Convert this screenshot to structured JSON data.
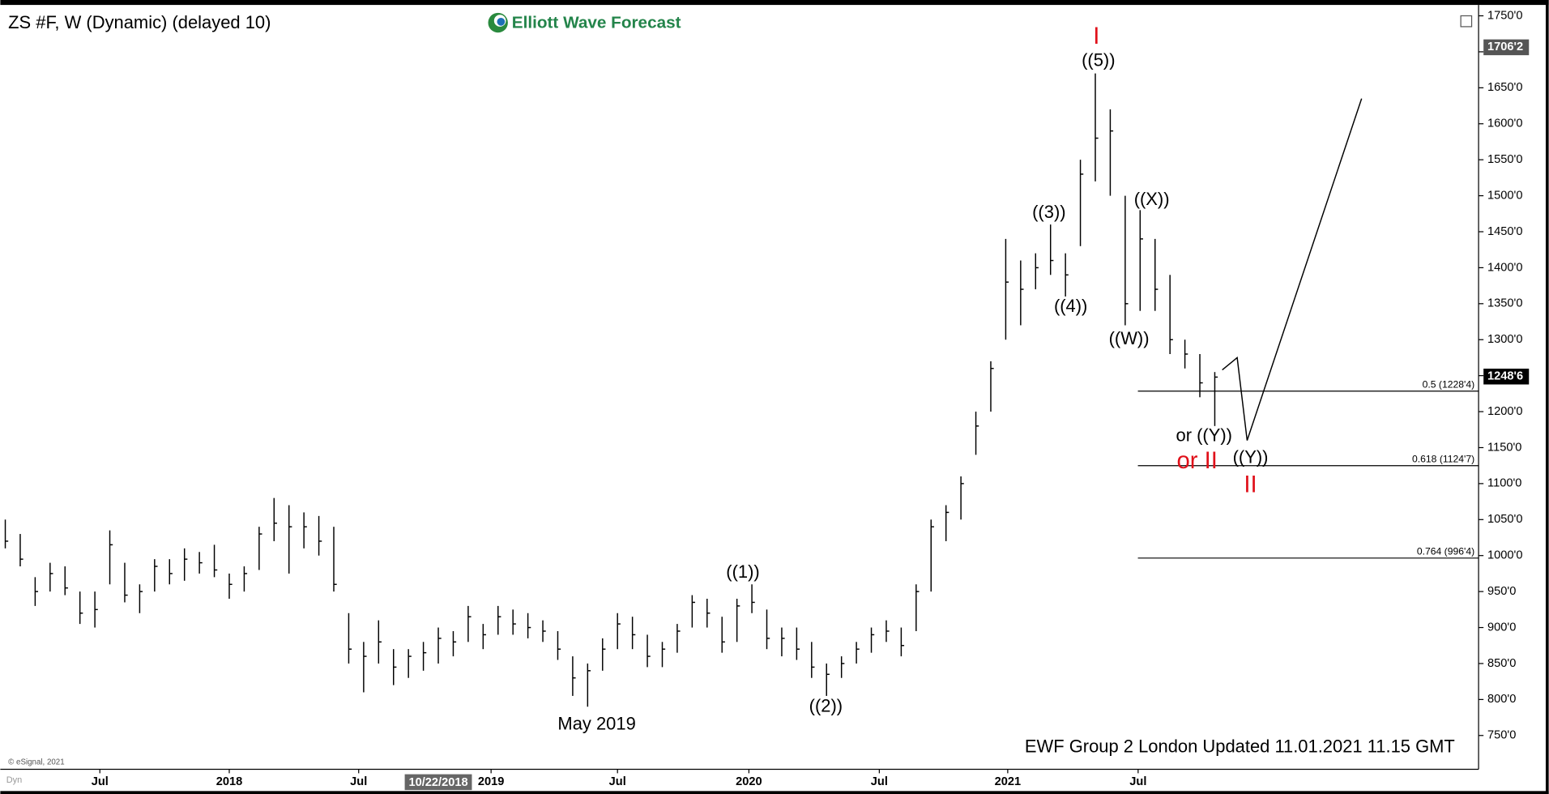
{
  "chart_data": {
    "type": "ohlc",
    "title": "ZS #F, W (Dynamic) (delayed 10)",
    "logo": "Elliott Wave Forecast",
    "footer": "EWF Group 2 London Updated 11.01.2021 11.15 GMT",
    "source": "© eSignal, 2021",
    "corner": "Dyn",
    "color": "#000000",
    "x": [
      1,
      4,
      7,
      10,
      13,
      16,
      19,
      22,
      25,
      28,
      31,
      34,
      37,
      40,
      43,
      46,
      49,
      52,
      55,
      58,
      61,
      64,
      67,
      70,
      73,
      76,
      79,
      82,
      85,
      88,
      91,
      94,
      97,
      100,
      103,
      106,
      109,
      112,
      115,
      118,
      121,
      124,
      127,
      130,
      133,
      136,
      139,
      142,
      145,
      148,
      151,
      154,
      157,
      160,
      163,
      166,
      169,
      172,
      175,
      178,
      181,
      184,
      187,
      190,
      193,
      196,
      199,
      202,
      205,
      208,
      211,
      214,
      217,
      220,
      223,
      226,
      229,
      232,
      235,
      238,
      241,
      244
    ],
    "high": [
      1050,
      1030,
      970,
      990,
      985,
      950,
      950,
      1035,
      990,
      960,
      995,
      995,
      1010,
      1005,
      1015,
      975,
      985,
      1040,
      1080,
      1070,
      1060,
      1055,
      1040,
      920,
      880,
      910,
      870,
      870,
      880,
      900,
      895,
      930,
      905,
      930,
      925,
      920,
      910,
      895,
      860,
      850,
      885,
      920,
      915,
      890,
      880,
      905,
      945,
      940,
      915,
      940,
      960,
      925,
      900,
      900,
      880,
      850,
      860,
      880,
      900,
      910,
      900,
      960,
      1050,
      1070,
      1110,
      1200,
      1270,
      1440,
      1410,
      1420,
      1460,
      1420,
      1550,
      1670,
      1620,
      1500,
      1480,
      1440,
      1390,
      1300,
      1280,
      1255
    ],
    "low": [
      1010,
      985,
      930,
      950,
      945,
      905,
      900,
      960,
      935,
      920,
      950,
      960,
      965,
      975,
      970,
      940,
      950,
      980,
      1020,
      975,
      1010,
      1000,
      950,
      850,
      810,
      850,
      820,
      830,
      840,
      850,
      860,
      880,
      870,
      890,
      890,
      885,
      880,
      855,
      805,
      790,
      840,
      870,
      870,
      845,
      845,
      865,
      900,
      900,
      865,
      880,
      920,
      870,
      860,
      855,
      830,
      805,
      830,
      850,
      865,
      880,
      860,
      895,
      950,
      1020,
      1050,
      1140,
      1200,
      1300,
      1320,
      1370,
      1390,
      1360,
      1430,
      1520,
      1500,
      1320,
      1340,
      1340,
      1280,
      1260,
      1220,
      1180
    ],
    "close": [
      1020,
      995,
      950,
      975,
      955,
      920,
      925,
      1015,
      945,
      950,
      985,
      975,
      995,
      990,
      980,
      960,
      975,
      1030,
      1045,
      1040,
      1040,
      1020,
      960,
      870,
      860,
      880,
      845,
      860,
      865,
      885,
      880,
      915,
      890,
      915,
      905,
      900,
      895,
      870,
      830,
      840,
      870,
      905,
      890,
      860,
      870,
      895,
      935,
      920,
      880,
      930,
      935,
      885,
      885,
      870,
      845,
      835,
      850,
      870,
      890,
      895,
      875,
      950,
      1040,
      1060,
      1100,
      1180,
      1260,
      1380,
      1370,
      1400,
      1410,
      1390,
      1530,
      1580,
      1590,
      1350,
      1440,
      1370,
      1300,
      1280,
      1240,
      1248
    ],
    "xlim": [
      0,
      297
    ],
    "ylim": [
      703,
      1761
    ],
    "xticks": [
      {
        "value": 20,
        "label": "Jul"
      },
      {
        "value": 46,
        "label": "2018"
      },
      {
        "value": 72,
        "label": "Jul"
      },
      {
        "value": 98.6,
        "label": "2019"
      },
      {
        "value": 124,
        "label": "Jul"
      },
      {
        "value": 150.4,
        "label": "2020"
      },
      {
        "value": 176.6,
        "label": "Jul"
      },
      {
        "value": 202.4,
        "label": "2021"
      },
      {
        "value": 228.6,
        "label": "Jul"
      }
    ],
    "crosshair": {
      "value": 88,
      "label": "10/22/2018"
    },
    "yticks": [
      {
        "value": 750,
        "label": "750'0"
      },
      {
        "value": 800,
        "label": "800'0"
      },
      {
        "value": 850,
        "label": "850'0"
      },
      {
        "value": 900,
        "label": "900'0"
      },
      {
        "value": 950,
        "label": "950'0"
      },
      {
        "value": 1000,
        "label": "1000'0"
      },
      {
        "value": 1050,
        "label": "1050'0"
      },
      {
        "value": 1100,
        "label": "1100'0"
      },
      {
        "value": 1150,
        "label": "1150'0"
      },
      {
        "value": 1200,
        "label": "1200'0"
      },
      {
        "value": 1250,
        "label": "1250'0"
      },
      {
        "value": 1300,
        "label": "1300'0"
      },
      {
        "value": 1350,
        "label": "1350'0"
      },
      {
        "value": 1400,
        "label": "1400'0"
      },
      {
        "value": 1450,
        "label": "1450'0"
      },
      {
        "value": 1500,
        "label": "1500'0"
      },
      {
        "value": 1550,
        "label": "1550'0"
      },
      {
        "value": 1600,
        "label": "1600'0"
      },
      {
        "value": 1650,
        "label": "1650'0"
      },
      {
        "value": 1700,
        "label": "1700'0"
      },
      {
        "value": 1750,
        "label": "1750'0"
      }
    ],
    "price_markers": [
      {
        "value": 1706.25,
        "label": "1706'2"
      },
      {
        "value": 1248.75,
        "label": "1248'6"
      }
    ],
    "fib_levels": [
      {
        "value": 1228.5,
        "label": "0.5 (1228'4)"
      },
      {
        "value": 1124.875,
        "label": "0.618 (1124'7)"
      },
      {
        "value": 996.5,
        "label": "0.764 (996'4)"
      }
    ],
    "projection": {
      "x": [
        245.5,
        248.5,
        250.5,
        273.5
      ],
      "values": [
        1258,
        1275,
        1160,
        1635
      ]
    },
    "annotations": [
      {
        "text": "I",
        "color": "#e0101a"
      },
      {
        "text": "((5))",
        "color": "#000000"
      },
      {
        "text": "((3))",
        "color": "#000000"
      },
      {
        "text": "((4))",
        "color": "#000000"
      },
      {
        "text": "((W))",
        "color": "#000000"
      },
      {
        "text": "((X))",
        "color": "#000000"
      },
      {
        "text": "or ((Y))",
        "color": "#000000"
      },
      {
        "text": "or II",
        "color": "#e0101a"
      },
      {
        "text": "((Y))",
        "color": "#000000"
      },
      {
        "text": "II",
        "color": "#e0101a"
      },
      {
        "text": "((1))",
        "color": "#000000"
      },
      {
        "text": "((2))",
        "color": "#000000"
      },
      {
        "text": "May 2019",
        "color": "#000000"
      }
    ]
  }
}
